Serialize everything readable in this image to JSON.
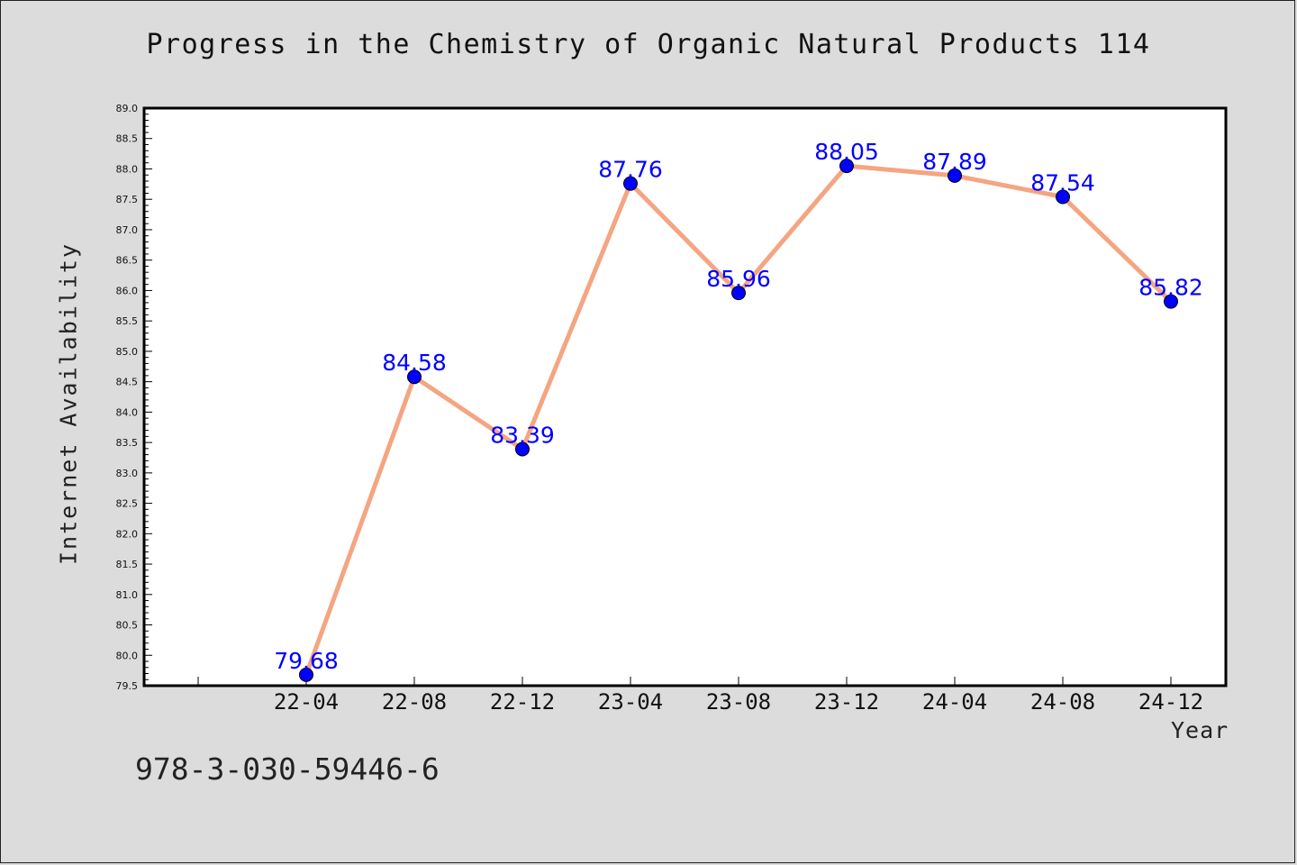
{
  "title": "Progress in the Chemistry of Organic Natural Products 114",
  "isbn": "978-3-030-59446-6",
  "colors": {
    "background": "#dcdcdc",
    "plot_background": "#ffffff",
    "line": "#f4a582",
    "marker": "#0000ff",
    "data_label": "#0000ff"
  },
  "chart_data": {
    "type": "line",
    "xlabel": "Year",
    "ylabel": "Internet Availability",
    "categories": [
      "22-04",
      "22-08",
      "22-12",
      "23-04",
      "23-08",
      "23-12",
      "24-04",
      "24-08",
      "24-12"
    ],
    "series": [
      {
        "values": [
          79.68,
          84.58,
          83.39,
          87.76,
          85.96,
          88.05,
          87.89,
          87.54,
          85.82
        ]
      }
    ],
    "data_labels": [
      "79.68",
      "84.58",
      "83.39",
      "87.76",
      "85.96",
      "88.05",
      "87.89",
      "87.54",
      "85.82"
    ],
    "ylim": [
      79.5,
      89.0
    ],
    "y_ticks": [
      "79.5",
      "80.0",
      "80.5",
      "81.0",
      "81.5",
      "82.0",
      "82.5",
      "83.0",
      "83.5",
      "84.0",
      "84.5",
      "85.0",
      "85.5",
      "86.0",
      "86.5",
      "87.0",
      "87.5",
      "88.0",
      "88.5",
      "89.0"
    ],
    "grid": false,
    "legend": "none"
  }
}
